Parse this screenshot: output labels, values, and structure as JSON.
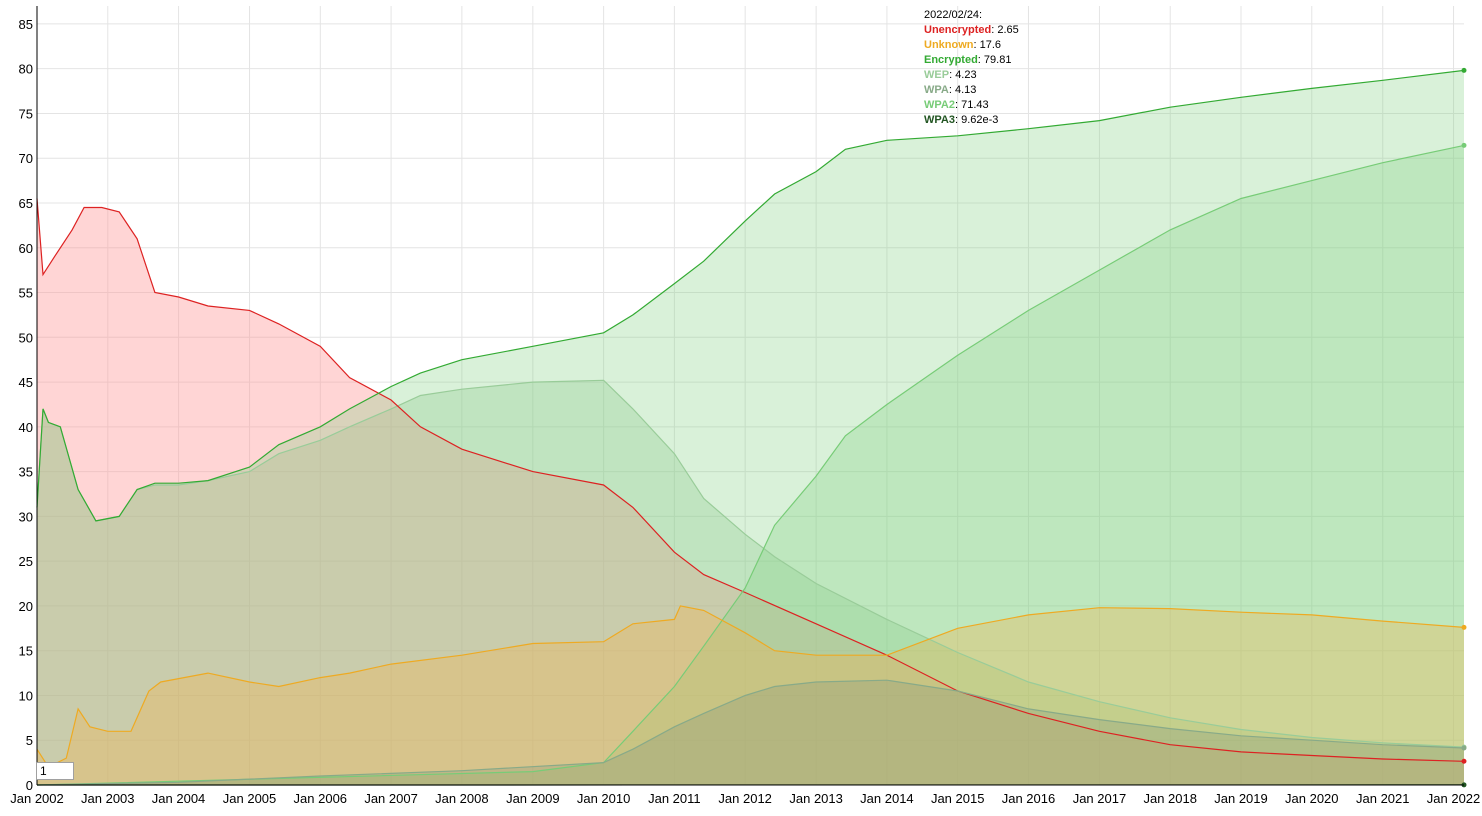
{
  "chart_data": {
    "type": "area",
    "title": "",
    "xlabel": "",
    "ylabel": "",
    "ylim": [
      0,
      87
    ],
    "xlim": [
      "2002-01-01",
      "2022-02-24"
    ],
    "y_ticks": [
      0,
      5,
      10,
      15,
      20,
      25,
      30,
      35,
      40,
      45,
      50,
      55,
      60,
      65,
      70,
      75,
      80,
      85
    ],
    "x_ticks": [
      {
        "date": "2002-01-01",
        "label": "Jan 2002"
      },
      {
        "date": "2003-01-01",
        "label": "Jan 2003"
      },
      {
        "date": "2004-01-01",
        "label": "Jan 2004"
      },
      {
        "date": "2005-01-01",
        "label": "Jan 2005"
      },
      {
        "date": "2006-01-01",
        "label": "Jan 2006"
      },
      {
        "date": "2007-01-01",
        "label": "Jan 2007"
      },
      {
        "date": "2008-01-01",
        "label": "Jan 2008"
      },
      {
        "date": "2009-01-01",
        "label": "Jan 2009"
      },
      {
        "date": "2010-01-01",
        "label": "Jan 2010"
      },
      {
        "date": "2011-01-01",
        "label": "Jan 2011"
      },
      {
        "date": "2012-01-01",
        "label": "Jan 2012"
      },
      {
        "date": "2013-01-01",
        "label": "Jan 2013"
      },
      {
        "date": "2014-01-01",
        "label": "Jan 2014"
      },
      {
        "date": "2015-01-01",
        "label": "Jan 2015"
      },
      {
        "date": "2016-01-01",
        "label": "Jan 2016"
      },
      {
        "date": "2017-01-01",
        "label": "Jan 2017"
      },
      {
        "date": "2018-01-01",
        "label": "Jan 2018"
      },
      {
        "date": "2019-01-01",
        "label": "Jan 2019"
      },
      {
        "date": "2020-01-01",
        "label": "Jan 2020"
      },
      {
        "date": "2021-01-01",
        "label": "Jan 2021"
      },
      {
        "date": "2022-01-01",
        "label": "Jan 2022"
      }
    ],
    "grid": true,
    "legend_position": "top-center",
    "legend": {
      "date_label": "2022/02/24:",
      "entries": [
        {
          "name": "Unencrypted",
          "value": "2.65",
          "color": "#dd2222"
        },
        {
          "name": "Unknown",
          "value": "17.6",
          "color": "#eeaa22"
        },
        {
          "name": "Encrypted",
          "value": "79.81",
          "color": "#33aa33"
        },
        {
          "name": "WEP",
          "value": "4.23",
          "color": "#99cc99"
        },
        {
          "name": "WPA",
          "value": "4.13",
          "color": "#88aa88"
        },
        {
          "name": "WPA2",
          "value": "71.43",
          "color": "#77cc77"
        },
        {
          "name": "WPA3",
          "value": "9.62e-3",
          "color": "#225522"
        }
      ]
    },
    "series": [
      {
        "name": "WEP",
        "color": "#99cc99",
        "fill": "rgba(153,204,153,0.35)",
        "points": [
          [
            "2002-01-01",
            31
          ],
          [
            "2002-02-01",
            42
          ],
          [
            "2002-03-01",
            40.5
          ],
          [
            "2002-05-01",
            40
          ],
          [
            "2002-08-01",
            33
          ],
          [
            "2002-11-01",
            29.5
          ],
          [
            "2003-03-01",
            30
          ],
          [
            "2003-06-01",
            33
          ],
          [
            "2003-09-01",
            33.5
          ],
          [
            "2004-01-01",
            33.5
          ],
          [
            "2004-06-01",
            34
          ],
          [
            "2005-01-01",
            35
          ],
          [
            "2005-06-01",
            37
          ],
          [
            "2006-01-01",
            38.5
          ],
          [
            "2006-06-01",
            40
          ],
          [
            "2007-01-01",
            42
          ],
          [
            "2007-06-01",
            43.5
          ],
          [
            "2008-01-01",
            44.2
          ],
          [
            "2009-01-01",
            45
          ],
          [
            "2010-01-01",
            45.2
          ],
          [
            "2010-06-01",
            42
          ],
          [
            "2011-01-01",
            37
          ],
          [
            "2011-06-01",
            32
          ],
          [
            "2012-01-01",
            28
          ],
          [
            "2012-06-01",
            25.5
          ],
          [
            "2013-01-01",
            22.5
          ],
          [
            "2014-01-01",
            18.5
          ],
          [
            "2015-01-01",
            14.8
          ],
          [
            "2016-01-01",
            11.5
          ],
          [
            "2017-01-01",
            9.3
          ],
          [
            "2018-01-01",
            7.5
          ],
          [
            "2019-01-01",
            6.2
          ],
          [
            "2020-01-01",
            5.3
          ],
          [
            "2021-01-01",
            4.7
          ],
          [
            "2022-02-24",
            4.23
          ]
        ]
      },
      {
        "name": "Unencrypted",
        "color": "#dd2222",
        "fill": "rgba(255,150,150,0.4)",
        "points": [
          [
            "2002-01-01",
            65.5
          ],
          [
            "2002-02-01",
            57
          ],
          [
            "2002-04-01",
            59
          ],
          [
            "2002-07-01",
            62
          ],
          [
            "2002-09-01",
            64.5
          ],
          [
            "2002-12-01",
            64.5
          ],
          [
            "2003-03-01",
            64
          ],
          [
            "2003-06-01",
            61
          ],
          [
            "2003-09-01",
            55
          ],
          [
            "2004-01-01",
            54.5
          ],
          [
            "2004-06-01",
            53.5
          ],
          [
            "2005-01-01",
            53
          ],
          [
            "2005-06-01",
            51.5
          ],
          [
            "2006-01-01",
            49
          ],
          [
            "2006-06-01",
            45.5
          ],
          [
            "2007-01-01",
            43
          ],
          [
            "2007-06-01",
            40
          ],
          [
            "2008-01-01",
            37.5
          ],
          [
            "2009-01-01",
            35
          ],
          [
            "2010-01-01",
            33.5
          ],
          [
            "2010-06-01",
            31
          ],
          [
            "2011-01-01",
            26
          ],
          [
            "2011-06-01",
            23.5
          ],
          [
            "2012-01-01",
            21.5
          ],
          [
            "2013-01-01",
            18
          ],
          [
            "2014-01-01",
            14.5
          ],
          [
            "2015-01-01",
            10.5
          ],
          [
            "2016-01-01",
            8
          ],
          [
            "2017-01-01",
            6
          ],
          [
            "2018-01-01",
            4.5
          ],
          [
            "2019-01-01",
            3.7
          ],
          [
            "2020-01-01",
            3.3
          ],
          [
            "2021-01-01",
            2.9
          ],
          [
            "2022-02-24",
            2.65
          ]
        ]
      },
      {
        "name": "Encrypted",
        "color": "#33aa33",
        "fill": "rgba(130,210,130,0.3)",
        "points": [
          [
            "2002-01-01",
            31
          ],
          [
            "2002-02-01",
            42
          ],
          [
            "2002-03-01",
            40.5
          ],
          [
            "2002-05-01",
            40
          ],
          [
            "2002-08-01",
            33
          ],
          [
            "2002-11-01",
            29.5
          ],
          [
            "2003-03-01",
            30
          ],
          [
            "2003-06-01",
            33
          ],
          [
            "2003-09-01",
            33.7
          ],
          [
            "2004-01-01",
            33.7
          ],
          [
            "2004-06-01",
            34
          ],
          [
            "2005-01-01",
            35.5
          ],
          [
            "2005-06-01",
            38
          ],
          [
            "2006-01-01",
            40
          ],
          [
            "2006-06-01",
            42
          ],
          [
            "2007-01-01",
            44.5
          ],
          [
            "2007-06-01",
            46
          ],
          [
            "2008-01-01",
            47.5
          ],
          [
            "2009-01-01",
            49
          ],
          [
            "2010-01-01",
            50.5
          ],
          [
            "2010-06-01",
            52.5
          ],
          [
            "2011-01-01",
            56
          ],
          [
            "2011-06-01",
            58.5
          ],
          [
            "2012-01-01",
            63
          ],
          [
            "2012-06-01",
            66
          ],
          [
            "2013-01-01",
            68.5
          ],
          [
            "2013-06-01",
            71
          ],
          [
            "2014-01-01",
            72
          ],
          [
            "2015-01-01",
            72.5
          ],
          [
            "2016-01-01",
            73.3
          ],
          [
            "2017-01-01",
            74.2
          ],
          [
            "2018-01-01",
            75.7
          ],
          [
            "2019-01-01",
            76.8
          ],
          [
            "2020-01-01",
            77.8
          ],
          [
            "2021-01-01",
            78.7
          ],
          [
            "2022-02-24",
            79.81
          ]
        ]
      },
      {
        "name": "WPA2",
        "color": "#77cc77",
        "fill": "rgba(130,210,130,0.3)",
        "points": [
          [
            "2002-01-01",
            0
          ],
          [
            "2009-01-01",
            1.5
          ],
          [
            "2010-01-01",
            2.5
          ],
          [
            "2010-06-01",
            6
          ],
          [
            "2011-01-01",
            11
          ],
          [
            "2011-06-01",
            15.5
          ],
          [
            "2012-01-01",
            22
          ],
          [
            "2012-06-01",
            29
          ],
          [
            "2013-01-01",
            34.5
          ],
          [
            "2013-06-01",
            39
          ],
          [
            "2014-01-01",
            42.5
          ],
          [
            "2015-01-01",
            48
          ],
          [
            "2016-01-01",
            53
          ],
          [
            "2017-01-01",
            57.5
          ],
          [
            "2018-01-01",
            62
          ],
          [
            "2019-01-01",
            65.5
          ],
          [
            "2020-01-01",
            67.5
          ],
          [
            "2021-01-01",
            69.5
          ],
          [
            "2022-02-24",
            71.43
          ]
        ]
      },
      {
        "name": "Unknown",
        "color": "#eeaa22",
        "fill": "rgba(240,180,80,0.35)",
        "points": [
          [
            "2002-01-01",
            4
          ],
          [
            "2002-03-01",
            2
          ],
          [
            "2002-06-01",
            3
          ],
          [
            "2002-08-01",
            8.5
          ],
          [
            "2002-10-01",
            6.5
          ],
          [
            "2003-01-01",
            6
          ],
          [
            "2003-05-01",
            6
          ],
          [
            "2003-08-01",
            10.5
          ],
          [
            "2003-10-01",
            11.5
          ],
          [
            "2004-06-01",
            12.5
          ],
          [
            "2005-01-01",
            11.5
          ],
          [
            "2005-06-01",
            11
          ],
          [
            "2006-01-01",
            12
          ],
          [
            "2006-06-01",
            12.5
          ],
          [
            "2007-01-01",
            13.5
          ],
          [
            "2008-01-01",
            14.5
          ],
          [
            "2009-01-01",
            15.8
          ],
          [
            "2010-01-01",
            16
          ],
          [
            "2010-06-01",
            18
          ],
          [
            "2011-01-01",
            18.5
          ],
          [
            "2011-02-01",
            20
          ],
          [
            "2011-06-01",
            19.5
          ],
          [
            "2012-01-01",
            17
          ],
          [
            "2012-06-01",
            15
          ],
          [
            "2013-01-01",
            14.5
          ],
          [
            "2014-01-01",
            14.5
          ],
          [
            "2015-01-01",
            17.5
          ],
          [
            "2016-01-01",
            19
          ],
          [
            "2017-01-01",
            19.8
          ],
          [
            "2018-01-01",
            19.7
          ],
          [
            "2019-01-01",
            19.3
          ],
          [
            "2020-01-01",
            19
          ],
          [
            "2021-01-01",
            18.3
          ],
          [
            "2022-02-24",
            17.6
          ]
        ]
      },
      {
        "name": "WPA",
        "color": "#88aa88",
        "fill": "rgba(120,140,120,0.25)",
        "points": [
          [
            "2002-01-01",
            0
          ],
          [
            "2004-01-01",
            0.3
          ],
          [
            "2006-01-01",
            1
          ],
          [
            "2008-01-01",
            1.6
          ],
          [
            "2010-01-01",
            2.5
          ],
          [
            "2010-06-01",
            4
          ],
          [
            "2011-01-01",
            6.5
          ],
          [
            "2011-06-01",
            8
          ],
          [
            "2012-01-01",
            10
          ],
          [
            "2012-06-01",
            11
          ],
          [
            "2013-01-01",
            11.5
          ],
          [
            "2014-01-01",
            11.7
          ],
          [
            "2015-01-01",
            10.5
          ],
          [
            "2016-01-01",
            8.5
          ],
          [
            "2017-01-01",
            7.3
          ],
          [
            "2018-01-01",
            6.3
          ],
          [
            "2019-01-01",
            5.5
          ],
          [
            "2020-01-01",
            5
          ],
          [
            "2021-01-01",
            4.5
          ],
          [
            "2022-02-24",
            4.13
          ]
        ]
      },
      {
        "name": "WPA3",
        "color": "#225522",
        "fill": "rgba(34,85,34,0.2)",
        "points": [
          [
            "2002-01-01",
            0
          ],
          [
            "2022-02-24",
            0.00962
          ]
        ]
      }
    ]
  },
  "roll_period_value": "1"
}
